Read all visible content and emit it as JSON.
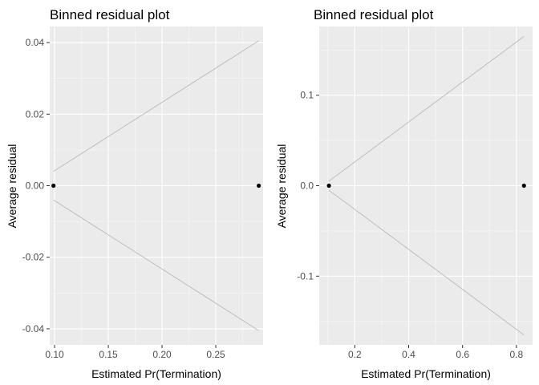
{
  "colors": {
    "panel_background": "#ebebeb",
    "grid_major": "#ffffff",
    "grid_minor": "#f7f7f7",
    "bound_line": "#b3b3b3",
    "point": "#000000",
    "tick_text": "#4d4d4d",
    "tick_mark": "#333333"
  },
  "chart_data": [
    {
      "type": "scatter",
      "title": "Binned residual plot",
      "xlabel": "Estimated Pr(Termination)",
      "ylabel": "Average residual",
      "xlim": [
        0.0955,
        0.294
      ],
      "ylim": [
        -0.0445,
        0.0445
      ],
      "xticks": [
        0.1,
        0.15,
        0.2,
        0.25
      ],
      "xtick_labels": [
        "0.10",
        "0.15",
        "0.20",
        "0.25"
      ],
      "yticks": [
        -0.04,
        -0.02,
        0.0,
        0.02,
        0.04
      ],
      "ytick_labels": [
        "-0.04",
        "-0.02",
        "0.00",
        "0.02",
        "0.04"
      ],
      "grid": true,
      "points": [
        {
          "x": 0.099,
          "y": 0.0
        },
        {
          "x": 0.29,
          "y": 0.0
        }
      ],
      "bounds": {
        "x": [
          0.099,
          0.29
        ],
        "upper": [
          0.004,
          0.0405
        ],
        "lower": [
          -0.004,
          -0.0405
        ]
      }
    },
    {
      "type": "scatter",
      "title": "Binned residual plot",
      "xlabel": "Estimated Pr(Termination)",
      "ylabel": "Average residual",
      "xlim": [
        0.068,
        0.86
      ],
      "ylim": [
        -0.176,
        0.176
      ],
      "xticks": [
        0.2,
        0.4,
        0.6,
        0.8
      ],
      "xtick_labels": [
        "0.2",
        "0.4",
        "0.6",
        "0.8"
      ],
      "yticks": [
        -0.1,
        0.0,
        0.1
      ],
      "ytick_labels": [
        "-0.1",
        "0.0",
        "0.1"
      ],
      "grid": true,
      "points": [
        {
          "x": 0.104,
          "y": 0.0
        },
        {
          "x": 0.828,
          "y": 0.0
        }
      ],
      "bounds": {
        "x": [
          0.104,
          0.828
        ],
        "upper": [
          0.005,
          0.165
        ],
        "lower": [
          -0.005,
          -0.165
        ]
      }
    }
  ]
}
